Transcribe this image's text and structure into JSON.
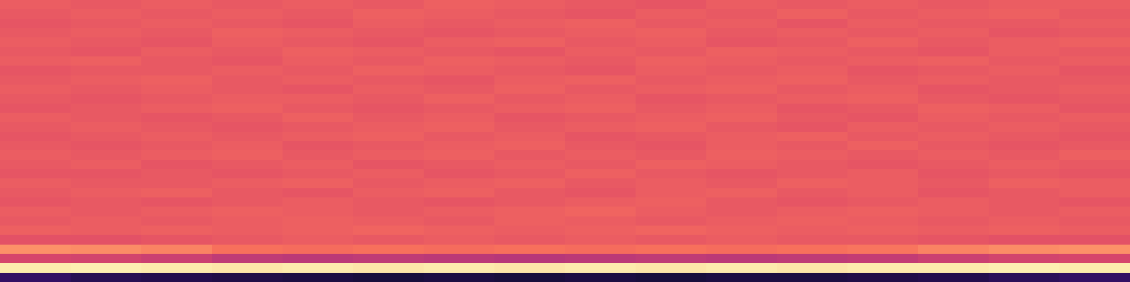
{
  "chart_data": {
    "type": "heatmap",
    "color": "magma",
    "tick_labels": false,
    "color_range": [
      0,
      1
    ],
    "cells": [
      [
        0.18,
        0.15,
        0.14,
        0.13,
        0.12,
        0.11,
        0.12,
        0.11,
        0.12,
        0.11,
        0.12,
        0.12,
        0.13,
        0.14,
        0.16,
        0.18
      ],
      [
        0.96,
        0.97,
        0.96,
        0.95,
        0.96,
        0.95,
        0.96,
        0.95,
        0.96,
        0.95,
        0.96,
        0.95,
        0.96,
        0.96,
        0.97,
        0.96
      ],
      [
        0.58,
        0.57,
        0.55,
        0.52,
        0.51,
        0.52,
        0.51,
        0.5,
        0.51,
        0.52,
        0.51,
        0.52,
        0.53,
        0.55,
        0.57,
        0.58
      ],
      [
        0.77,
        0.76,
        0.74,
        0.7,
        0.69,
        0.7,
        0.69,
        0.7,
        0.69,
        0.7,
        0.69,
        0.7,
        0.71,
        0.74,
        0.76,
        0.77
      ],
      [
        0.62,
        0.62,
        0.63,
        0.64,
        0.65,
        0.64,
        0.65,
        0.64,
        0.65,
        0.64,
        0.65,
        0.64,
        0.64,
        0.63,
        0.62,
        0.62
      ],
      [
        0.66,
        0.65,
        0.66,
        0.65,
        0.66,
        0.67,
        0.66,
        0.65,
        0.66,
        0.67,
        0.66,
        0.65,
        0.66,
        0.65,
        0.66,
        0.65
      ],
      [
        0.64,
        0.65,
        0.64,
        0.65,
        0.66,
        0.65,
        0.64,
        0.66,
        0.65,
        0.64,
        0.65,
        0.66,
        0.65,
        0.64,
        0.65,
        0.64
      ],
      [
        0.65,
        0.64,
        0.65,
        0.66,
        0.65,
        0.64,
        0.65,
        0.66,
        0.67,
        0.65,
        0.64,
        0.65,
        0.66,
        0.65,
        0.64,
        0.65
      ],
      [
        0.63,
        0.64,
        0.63,
        0.64,
        0.65,
        0.64,
        0.63,
        0.64,
        0.65,
        0.66,
        0.64,
        0.63,
        0.64,
        0.65,
        0.64,
        0.63
      ],
      [
        0.64,
        0.65,
        0.66,
        0.64,
        0.63,
        0.65,
        0.66,
        0.64,
        0.63,
        0.65,
        0.66,
        0.64,
        0.65,
        0.63,
        0.64,
        0.65
      ],
      [
        0.65,
        0.64,
        0.64,
        0.65,
        0.66,
        0.64,
        0.65,
        0.66,
        0.64,
        0.65,
        0.64,
        0.66,
        0.65,
        0.64,
        0.66,
        0.65
      ],
      [
        0.63,
        0.63,
        0.64,
        0.63,
        0.64,
        0.65,
        0.63,
        0.64,
        0.66,
        0.64,
        0.63,
        0.64,
        0.65,
        0.63,
        0.64,
        0.63
      ],
      [
        0.64,
        0.65,
        0.63,
        0.64,
        0.65,
        0.63,
        0.64,
        0.65,
        0.64,
        0.66,
        0.65,
        0.64,
        0.63,
        0.64,
        0.65,
        0.64
      ],
      [
        0.65,
        0.64,
        0.65,
        0.66,
        0.64,
        0.65,
        0.66,
        0.64,
        0.65,
        0.64,
        0.66,
        0.65,
        0.64,
        0.65,
        0.64,
        0.66
      ],
      [
        0.64,
        0.63,
        0.64,
        0.65,
        0.63,
        0.64,
        0.65,
        0.66,
        0.64,
        0.63,
        0.65,
        0.64,
        0.66,
        0.64,
        0.63,
        0.64
      ],
      [
        0.63,
        0.64,
        0.65,
        0.64,
        0.65,
        0.66,
        0.64,
        0.65,
        0.63,
        0.64,
        0.65,
        0.66,
        0.64,
        0.65,
        0.64,
        0.63
      ],
      [
        0.64,
        0.65,
        0.64,
        0.63,
        0.64,
        0.65,
        0.66,
        0.64,
        0.65,
        0.66,
        0.64,
        0.63,
        0.65,
        0.64,
        0.65,
        0.64
      ],
      [
        0.65,
        0.64,
        0.63,
        0.64,
        0.66,
        0.64,
        0.65,
        0.63,
        0.64,
        0.65,
        0.66,
        0.64,
        0.63,
        0.65,
        0.64,
        0.65
      ],
      [
        0.63,
        0.64,
        0.65,
        0.66,
        0.64,
        0.63,
        0.64,
        0.65,
        0.66,
        0.64,
        0.65,
        0.63,
        0.64,
        0.66,
        0.65,
        0.63
      ],
      [
        0.64,
        0.63,
        0.64,
        0.65,
        0.65,
        0.64,
        0.66,
        0.64,
        0.65,
        0.63,
        0.64,
        0.65,
        0.66,
        0.64,
        0.63,
        0.64
      ],
      [
        0.65,
        0.64,
        0.65,
        0.64,
        0.63,
        0.65,
        0.64,
        0.66,
        0.64,
        0.65,
        0.66,
        0.64,
        0.65,
        0.63,
        0.64,
        0.65
      ],
      [
        0.64,
        0.65,
        0.66,
        0.64,
        0.65,
        0.64,
        0.63,
        0.65,
        0.66,
        0.64,
        0.65,
        0.66,
        0.64,
        0.65,
        0.64,
        0.64
      ],
      [
        0.63,
        0.64,
        0.64,
        0.65,
        0.64,
        0.66,
        0.65,
        0.64,
        0.63,
        0.65,
        0.64,
        0.65,
        0.63,
        0.64,
        0.65,
        0.63
      ],
      [
        0.65,
        0.66,
        0.64,
        0.63,
        0.65,
        0.64,
        0.66,
        0.65,
        0.64,
        0.66,
        0.65,
        0.64,
        0.65,
        0.66,
        0.64,
        0.65
      ],
      [
        0.64,
        0.63,
        0.65,
        0.64,
        0.66,
        0.65,
        0.64,
        0.63,
        0.65,
        0.64,
        0.66,
        0.65,
        0.64,
        0.63,
        0.65,
        0.64
      ],
      [
        0.65,
        0.64,
        0.63,
        0.65,
        0.64,
        0.63,
        0.65,
        0.66,
        0.64,
        0.65,
        0.63,
        0.64,
        0.66,
        0.64,
        0.65,
        0.66
      ],
      [
        0.64,
        0.65,
        0.64,
        0.66,
        0.65,
        0.64,
        0.63,
        0.64,
        0.65,
        0.66,
        0.64,
        0.65,
        0.64,
        0.65,
        0.63,
        0.64
      ],
      [
        0.63,
        0.64,
        0.65,
        0.64,
        0.63,
        0.65,
        0.64,
        0.65,
        0.66,
        0.64,
        0.65,
        0.63,
        0.65,
        0.64,
        0.64,
        0.65
      ],
      [
        0.64,
        0.65,
        0.64,
        0.65,
        0.64,
        0.66,
        0.65,
        0.64,
        0.63,
        0.65,
        0.64,
        0.66,
        0.64,
        0.65,
        0.66,
        0.64
      ],
      [
        0.65,
        0.64,
        0.65,
        0.64,
        0.65,
        0.64,
        0.66,
        0.65,
        0.64,
        0.63,
        0.65,
        0.64,
        0.65,
        0.64,
        0.65,
        0.65
      ]
    ]
  }
}
